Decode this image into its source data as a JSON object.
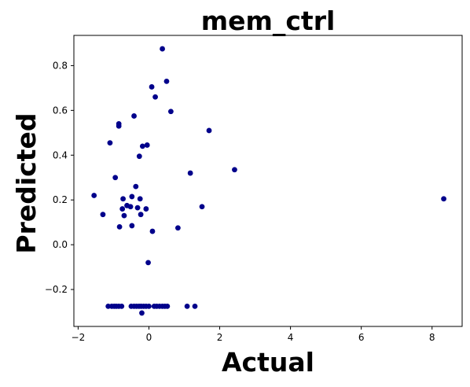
{
  "chart_data": {
    "type": "scatter",
    "title": "mem_ctrl",
    "xlabel": "Actual",
    "ylabel": "Predicted",
    "xlim": [
      -2.12,
      8.85
    ],
    "ylim": [
      -0.365,
      0.935
    ],
    "xticks": [
      -2,
      0,
      2,
      4,
      6,
      8
    ],
    "xtick_labels": [
      "−2",
      "0",
      "2",
      "4",
      "6",
      "8"
    ],
    "yticks": [
      -0.2,
      0.0,
      0.2,
      0.4,
      0.6,
      0.8
    ],
    "ytick_labels": [
      "−0.2",
      "0.0",
      "0.2",
      "0.4",
      "0.6",
      "0.8"
    ],
    "marker_color": "#00008b",
    "grid": false,
    "series": [
      {
        "x": [
          0.38,
          0.08,
          0.5,
          0.18,
          -0.42,
          0.62,
          -0.85,
          -0.85,
          1.7,
          -1.1,
          -0.05,
          -0.18,
          -0.27,
          2.42,
          1.17,
          -0.95,
          -0.37,
          -1.55,
          -0.48,
          -0.25,
          -0.73,
          -0.62,
          -0.52,
          -0.7,
          -0.23,
          -0.08,
          1.5,
          -1.3,
          -0.32,
          -0.75,
          -0.83,
          -0.48,
          0.82,
          0.1,
          -0.02,
          8.33,
          -1.15,
          -1.05,
          -0.98,
          -0.92,
          -0.85,
          -0.77,
          -0.5,
          -0.42,
          -0.35,
          -0.28,
          -0.22,
          -0.15,
          -0.08,
          0.0,
          0.15,
          0.22,
          0.3,
          0.38,
          0.45,
          0.52,
          1.08,
          1.3,
          -0.2
        ],
        "y": [
          0.875,
          0.705,
          0.73,
          0.66,
          0.575,
          0.595,
          0.54,
          0.53,
          0.51,
          0.455,
          0.445,
          0.44,
          0.395,
          0.335,
          0.32,
          0.3,
          0.26,
          0.22,
          0.215,
          0.205,
          0.205,
          0.175,
          0.17,
          0.13,
          0.135,
          0.16,
          0.17,
          0.135,
          0.165,
          0.16,
          0.08,
          0.085,
          0.075,
          0.06,
          -0.08,
          0.205,
          -0.275,
          -0.275,
          -0.275,
          -0.275,
          -0.275,
          -0.275,
          -0.275,
          -0.275,
          -0.275,
          -0.275,
          -0.275,
          -0.275,
          -0.275,
          -0.275,
          -0.275,
          -0.275,
          -0.275,
          -0.275,
          -0.275,
          -0.275,
          -0.275,
          -0.275,
          -0.305
        ]
      }
    ]
  }
}
